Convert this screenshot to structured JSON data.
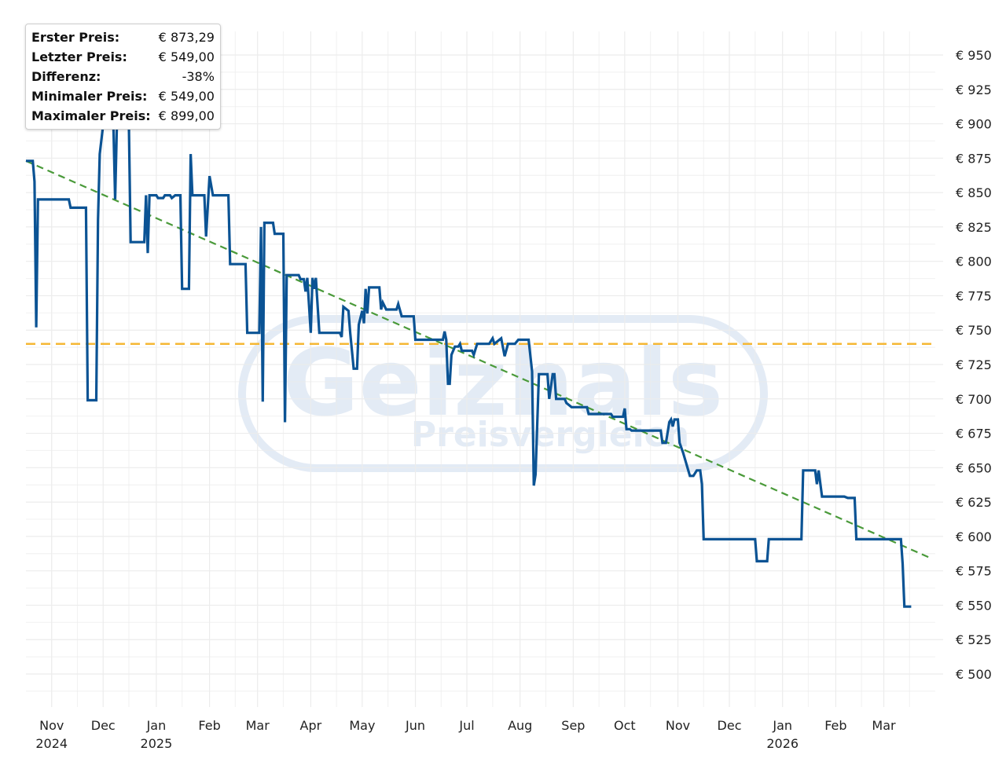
{
  "stats": {
    "first_label": "Erster Preis:",
    "first_value": "€ 873,29",
    "last_label": "Letzter Preis:",
    "last_value": "€ 549,00",
    "diff_label": "Differenz:",
    "diff_value": "-38%",
    "min_label": "Minimaler Preis:",
    "min_value": "€ 549,00",
    "max_label": "Maximaler Preis:",
    "max_value": "€ 899,00"
  },
  "watermark": {
    "brand": "Geizhals",
    "subtitle": "Preisvergleich"
  },
  "colors": {
    "price_line": "#0b5394",
    "average_line": "#f5b734",
    "trend_line": "#4a9a3a",
    "grid": "#ececec",
    "watermark": "#e3ebf5"
  },
  "chart_data": {
    "type": "line",
    "y_tick_labels": [
      "€ 950",
      "€ 925",
      "€ 900",
      "€ 875",
      "€ 850",
      "€ 825",
      "€ 800",
      "€ 775",
      "€ 750",
      "€ 725",
      "€ 700",
      "€ 675",
      "€ 650",
      "€ 625",
      "€ 600",
      "€ 575",
      "€ 550",
      "€ 525",
      "€ 500"
    ],
    "y_tick_values": [
      950,
      925,
      900,
      875,
      850,
      825,
      800,
      775,
      750,
      725,
      700,
      675,
      650,
      625,
      600,
      575,
      550,
      525,
      500
    ],
    "ylim": [
      480,
      970
    ],
    "x_ticks": [
      {
        "date": "2024-11-01",
        "label": "Nov",
        "year": "2024"
      },
      {
        "date": "2024-12-01",
        "label": "Dec",
        "year": ""
      },
      {
        "date": "2025-01-01",
        "label": "Jan",
        "year": "2025"
      },
      {
        "date": "2025-02-01",
        "label": "Feb",
        "year": ""
      },
      {
        "date": "2025-03-01",
        "label": "Mar",
        "year": ""
      },
      {
        "date": "2025-04-01",
        "label": "Apr",
        "year": ""
      },
      {
        "date": "2025-05-01",
        "label": "May",
        "year": ""
      },
      {
        "date": "2025-06-01",
        "label": "Jun",
        "year": ""
      },
      {
        "date": "2025-07-01",
        "label": "Jul",
        "year": ""
      },
      {
        "date": "2025-08-01",
        "label": "Aug",
        "year": ""
      },
      {
        "date": "2025-09-01",
        "label": "Sep",
        "year": ""
      },
      {
        "date": "2025-10-01",
        "label": "Oct",
        "year": ""
      },
      {
        "date": "2025-11-01",
        "label": "Nov",
        "year": ""
      },
      {
        "date": "2025-12-01",
        "label": "Dec",
        "year": ""
      },
      {
        "date": "2026-01-01",
        "label": "Jan",
        "year": "2026"
      },
      {
        "date": "2026-02-01",
        "label": "Feb",
        "year": ""
      },
      {
        "date": "2026-03-01",
        "label": "Mar",
        "year": ""
      }
    ],
    "xlim": [
      "2024-10-17",
      "2026-03-31"
    ],
    "average_price": 740,
    "trend": [
      {
        "x": "2024-10-17",
        "y": 873
      },
      {
        "x": "2026-03-27",
        "y": 585
      }
    ],
    "price_series": [
      {
        "x": "2024-10-17",
        "y": 873
      },
      {
        "x": "2024-10-21",
        "y": 873
      },
      {
        "x": "2024-10-22",
        "y": 858
      },
      {
        "x": "2024-10-23",
        "y": 752
      },
      {
        "x": "2024-10-24",
        "y": 845
      },
      {
        "x": "2024-10-25",
        "y": 845
      },
      {
        "x": "2024-11-11",
        "y": 845
      },
      {
        "x": "2024-11-12",
        "y": 839
      },
      {
        "x": "2024-11-21",
        "y": 839
      },
      {
        "x": "2024-11-22",
        "y": 699
      },
      {
        "x": "2024-11-27",
        "y": 699
      },
      {
        "x": "2024-11-28",
        "y": 830
      },
      {
        "x": "2024-11-29",
        "y": 878
      },
      {
        "x": "2024-12-01",
        "y": 899
      },
      {
        "x": "2024-12-07",
        "y": 899
      },
      {
        "x": "2024-12-08",
        "y": 845
      },
      {
        "x": "2024-12-09",
        "y": 899
      },
      {
        "x": "2024-12-16",
        "y": 899
      },
      {
        "x": "2024-12-17",
        "y": 814
      },
      {
        "x": "2024-12-25",
        "y": 814
      },
      {
        "x": "2024-12-26",
        "y": 848
      },
      {
        "x": "2024-12-27",
        "y": 806
      },
      {
        "x": "2024-12-28",
        "y": 848
      },
      {
        "x": "2025-01-01",
        "y": 848
      },
      {
        "x": "2025-01-02",
        "y": 846
      },
      {
        "x": "2025-01-05",
        "y": 846
      },
      {
        "x": "2025-01-06",
        "y": 848
      },
      {
        "x": "2025-01-09",
        "y": 848
      },
      {
        "x": "2025-01-10",
        "y": 846
      },
      {
        "x": "2025-01-12",
        "y": 848
      },
      {
        "x": "2025-01-15",
        "y": 848
      },
      {
        "x": "2025-01-16",
        "y": 780
      },
      {
        "x": "2025-01-20",
        "y": 780
      },
      {
        "x": "2025-01-21",
        "y": 878
      },
      {
        "x": "2025-01-22",
        "y": 848
      },
      {
        "x": "2025-01-29",
        "y": 848
      },
      {
        "x": "2025-01-30",
        "y": 818
      },
      {
        "x": "2025-02-01",
        "y": 862
      },
      {
        "x": "2025-02-03",
        "y": 848
      },
      {
        "x": "2025-02-12",
        "y": 848
      },
      {
        "x": "2025-02-13",
        "y": 798
      },
      {
        "x": "2025-02-22",
        "y": 798
      },
      {
        "x": "2025-02-23",
        "y": 748
      },
      {
        "x": "2025-03-02",
        "y": 748
      },
      {
        "x": "2025-03-03",
        "y": 825
      },
      {
        "x": "2025-03-04",
        "y": 698
      },
      {
        "x": "2025-03-05",
        "y": 828
      },
      {
        "x": "2025-03-10",
        "y": 828
      },
      {
        "x": "2025-03-11",
        "y": 820
      },
      {
        "x": "2025-03-16",
        "y": 820
      },
      {
        "x": "2025-03-17",
        "y": 683
      },
      {
        "x": "2025-03-18",
        "y": 790
      },
      {
        "x": "2025-03-25",
        "y": 790
      },
      {
        "x": "2025-03-26",
        "y": 787
      },
      {
        "x": "2025-03-28",
        "y": 787
      },
      {
        "x": "2025-03-29",
        "y": 778
      },
      {
        "x": "2025-03-30",
        "y": 788
      },
      {
        "x": "2025-04-01",
        "y": 748
      },
      {
        "x": "2025-04-02",
        "y": 788
      },
      {
        "x": "2025-04-03",
        "y": 780
      },
      {
        "x": "2025-04-04",
        "y": 788
      },
      {
        "x": "2025-04-06",
        "y": 748
      },
      {
        "x": "2025-04-16",
        "y": 748
      },
      {
        "x": "2025-04-18",
        "y": 748
      },
      {
        "x": "2025-04-19",
        "y": 745
      },
      {
        "x": "2025-04-20",
        "y": 767
      },
      {
        "x": "2025-04-23",
        "y": 764
      },
      {
        "x": "2025-04-24",
        "y": 748
      },
      {
        "x": "2025-04-26",
        "y": 722
      },
      {
        "x": "2025-04-28",
        "y": 722
      },
      {
        "x": "2025-04-29",
        "y": 754
      },
      {
        "x": "2025-05-01",
        "y": 764
      },
      {
        "x": "2025-05-02",
        "y": 755
      },
      {
        "x": "2025-05-03",
        "y": 780
      },
      {
        "x": "2025-05-04",
        "y": 762
      },
      {
        "x": "2025-05-05",
        "y": 781
      },
      {
        "x": "2025-05-11",
        "y": 781
      },
      {
        "x": "2025-05-12",
        "y": 765
      },
      {
        "x": "2025-05-13",
        "y": 770
      },
      {
        "x": "2025-05-15",
        "y": 765
      },
      {
        "x": "2025-05-21",
        "y": 765
      },
      {
        "x": "2025-05-22",
        "y": 769
      },
      {
        "x": "2025-05-24",
        "y": 760
      },
      {
        "x": "2025-05-31",
        "y": 760
      },
      {
        "x": "2025-06-01",
        "y": 743
      },
      {
        "x": "2025-06-17",
        "y": 743
      },
      {
        "x": "2025-06-18",
        "y": 749
      },
      {
        "x": "2025-06-19",
        "y": 743
      },
      {
        "x": "2025-06-20",
        "y": 711
      },
      {
        "x": "2025-06-21",
        "y": 711
      },
      {
        "x": "2025-06-22",
        "y": 732
      },
      {
        "x": "2025-06-24",
        "y": 738
      },
      {
        "x": "2025-06-26",
        "y": 738
      },
      {
        "x": "2025-06-27",
        "y": 740
      },
      {
        "x": "2025-06-28",
        "y": 735
      },
      {
        "x": "2025-07-04",
        "y": 735
      },
      {
        "x": "2025-07-05",
        "y": 732
      },
      {
        "x": "2025-07-07",
        "y": 740
      },
      {
        "x": "2025-07-14",
        "y": 740
      },
      {
        "x": "2025-07-16",
        "y": 744
      },
      {
        "x": "2025-07-17",
        "y": 740
      },
      {
        "x": "2025-07-21",
        "y": 744
      },
      {
        "x": "2025-07-23",
        "y": 731
      },
      {
        "x": "2025-07-25",
        "y": 740
      },
      {
        "x": "2025-07-29",
        "y": 740
      },
      {
        "x": "2025-07-31",
        "y": 743
      },
      {
        "x": "2025-08-06",
        "y": 743
      },
      {
        "x": "2025-08-08",
        "y": 720
      },
      {
        "x": "2025-08-09",
        "y": 637
      },
      {
        "x": "2025-08-10",
        "y": 645
      },
      {
        "x": "2025-08-12",
        "y": 718
      },
      {
        "x": "2025-08-17",
        "y": 718
      },
      {
        "x": "2025-08-18",
        "y": 700
      },
      {
        "x": "2025-08-20",
        "y": 718
      },
      {
        "x": "2025-08-21",
        "y": 718
      },
      {
        "x": "2025-08-22",
        "y": 700
      },
      {
        "x": "2025-08-27",
        "y": 700
      },
      {
        "x": "2025-08-28",
        "y": 697
      },
      {
        "x": "2025-08-31",
        "y": 694
      },
      {
        "x": "2025-09-01",
        "y": 694
      },
      {
        "x": "2025-09-09",
        "y": 694
      },
      {
        "x": "2025-09-10",
        "y": 689
      },
      {
        "x": "2025-09-23",
        "y": 689
      },
      {
        "x": "2025-09-24",
        "y": 687
      },
      {
        "x": "2025-09-30",
        "y": 687
      },
      {
        "x": "2025-10-01",
        "y": 693
      },
      {
        "x": "2025-10-02",
        "y": 678
      },
      {
        "x": "2025-10-04",
        "y": 678
      },
      {
        "x": "2025-10-05",
        "y": 677
      },
      {
        "x": "2025-10-22",
        "y": 677
      },
      {
        "x": "2025-10-23",
        "y": 668
      },
      {
        "x": "2025-10-25",
        "y": 668
      },
      {
        "x": "2025-10-27",
        "y": 683
      },
      {
        "x": "2025-10-28",
        "y": 685
      },
      {
        "x": "2025-10-29",
        "y": 680
      },
      {
        "x": "2025-10-30",
        "y": 685
      },
      {
        "x": "2025-11-01",
        "y": 685
      },
      {
        "x": "2025-11-02",
        "y": 668
      },
      {
        "x": "2025-11-04",
        "y": 661
      },
      {
        "x": "2025-11-08",
        "y": 644
      },
      {
        "x": "2025-11-10",
        "y": 644
      },
      {
        "x": "2025-11-12",
        "y": 648
      },
      {
        "x": "2025-11-14",
        "y": 648
      },
      {
        "x": "2025-11-15",
        "y": 638
      },
      {
        "x": "2025-11-16",
        "y": 598
      },
      {
        "x": "2025-12-16",
        "y": 598
      },
      {
        "x": "2025-12-17",
        "y": 582
      },
      {
        "x": "2025-12-23",
        "y": 582
      },
      {
        "x": "2025-12-24",
        "y": 598
      },
      {
        "x": "2026-01-12",
        "y": 598
      },
      {
        "x": "2026-01-13",
        "y": 648
      },
      {
        "x": "2026-01-20",
        "y": 648
      },
      {
        "x": "2026-01-21",
        "y": 638
      },
      {
        "x": "2026-01-22",
        "y": 648
      },
      {
        "x": "2026-01-24",
        "y": 629
      },
      {
        "x": "2026-02-06",
        "y": 629
      },
      {
        "x": "2026-02-08",
        "y": 628
      },
      {
        "x": "2026-02-12",
        "y": 628
      },
      {
        "x": "2026-02-13",
        "y": 598
      },
      {
        "x": "2026-03-11",
        "y": 598
      },
      {
        "x": "2026-03-12",
        "y": 580
      },
      {
        "x": "2026-03-13",
        "y": 549
      },
      {
        "x": "2026-03-17",
        "y": 549
      }
    ]
  }
}
